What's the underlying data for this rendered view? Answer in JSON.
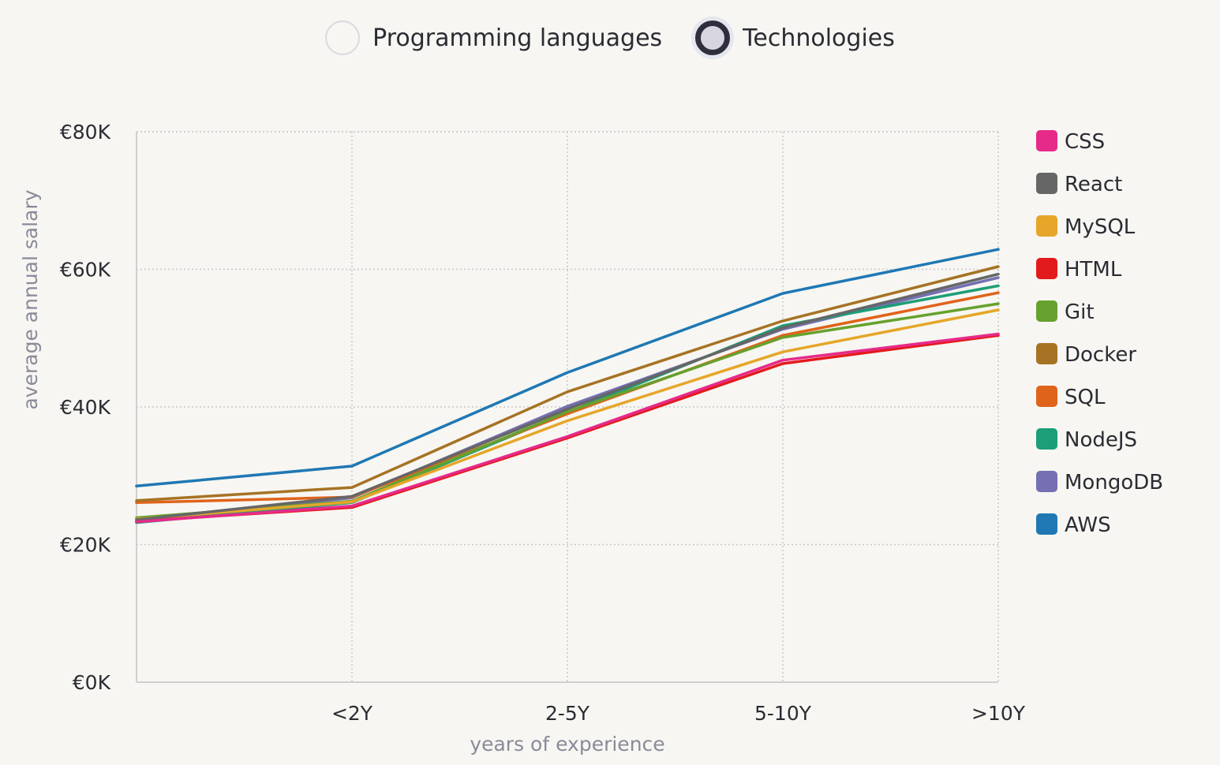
{
  "toggle": {
    "options": [
      {
        "label": "Programming languages",
        "selected": false
      },
      {
        "label": "Technologies",
        "selected": true
      }
    ]
  },
  "chart_data": {
    "type": "line",
    "title": "",
    "xlabel": "years of experience",
    "ylabel": "average annual salary",
    "x": [
      "",
      "<2Y",
      "2-5Y",
      "5-10Y",
      ">10Y"
    ],
    "ylim": [
      0,
      80000
    ],
    "yticks": [
      0,
      20000,
      40000,
      60000,
      80000
    ],
    "ytick_labels": [
      "€0K",
      "€20K",
      "€40K",
      "€60K",
      "€80K"
    ],
    "grid": true,
    "legend_position": "right",
    "series": [
      {
        "name": "CSS",
        "color": "#e62a8a",
        "values": [
          23300,
          25600,
          35700,
          46800,
          50600
        ]
      },
      {
        "name": "React",
        "color": "#666666",
        "values": [
          23600,
          27000,
          39700,
          51500,
          59300
        ]
      },
      {
        "name": "MySQL",
        "color": "#e6a629",
        "values": [
          23700,
          26200,
          38000,
          48000,
          54100
        ]
      },
      {
        "name": "HTML",
        "color": "#e31a1c",
        "values": [
          23400,
          25400,
          35500,
          46300,
          50400
        ]
      },
      {
        "name": "Git",
        "color": "#66a12e",
        "values": [
          23900,
          26300,
          39300,
          50100,
          55000
        ]
      },
      {
        "name": "Docker",
        "color": "#a67324",
        "values": [
          26400,
          28300,
          42200,
          52500,
          60400
        ]
      },
      {
        "name": "SQL",
        "color": "#e0631a",
        "values": [
          26100,
          26900,
          39000,
          50400,
          56600
        ]
      },
      {
        "name": "NodeJS",
        "color": "#1c9e78",
        "values": [
          23200,
          26100,
          39200,
          51800,
          57600
        ]
      },
      {
        "name": "MongoDB",
        "color": "#7570b3",
        "values": [
          23500,
          26800,
          40100,
          51300,
          58800
        ]
      },
      {
        "name": "AWS",
        "color": "#1f78b4",
        "values": [
          28500,
          31400,
          45000,
          56500,
          62900
        ]
      }
    ]
  }
}
